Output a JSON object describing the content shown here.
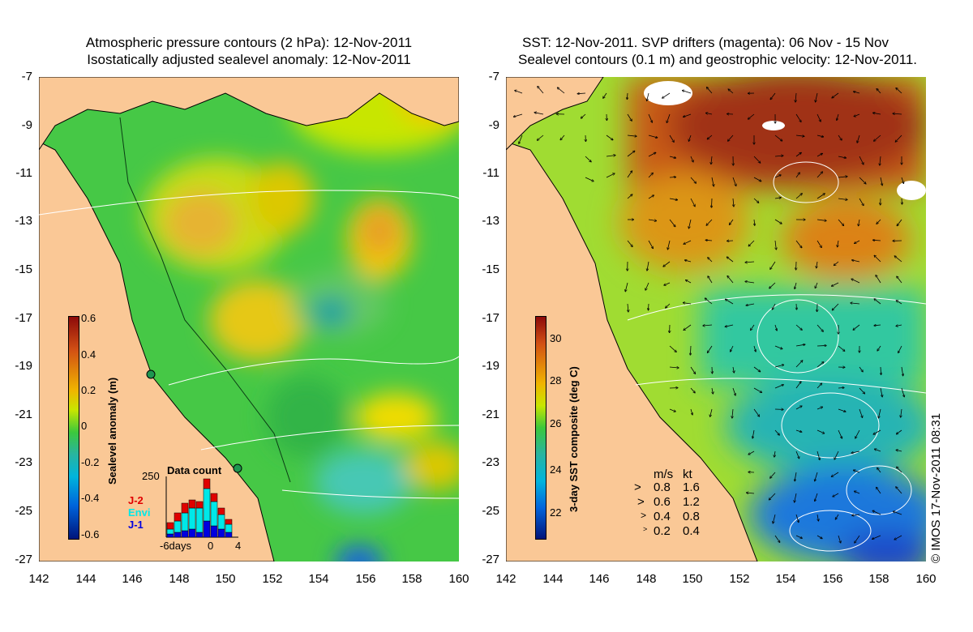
{
  "left_title": {
    "line1": "Atmospheric pressure contours (2 hPa): 12-Nov-2011",
    "line2": "Isostatically adjusted sealevel anomaly: 12-Nov-2011"
  },
  "right_title": {
    "line1": "SST: 12-Nov-2011. SVP drifters (magenta): 06 Nov - 15 Nov",
    "line2": "Sealevel contours (0.1 m) and geostrophic velocity: 12-Nov-2011."
  },
  "latitude_ticks": [
    "-7",
    "-9",
    "-11",
    "-13",
    "-15",
    "-17",
    "-19",
    "-21",
    "-23",
    "-25",
    "-27"
  ],
  "longitude_ticks": [
    "142",
    "144",
    "146",
    "148",
    "150",
    "152",
    "154",
    "156",
    "158",
    "160"
  ],
  "left_colorbar": {
    "label": "Sealevel anomaly (m)",
    "ticks": [
      "0.6",
      "0.4",
      "0.2",
      "0",
      "-0.2",
      "-0.4",
      "-0.6"
    ]
  },
  "right_colorbar": {
    "label": "3-day SST composite (deg C)",
    "ticks": [
      "30",
      "28",
      "26",
      "24",
      "22"
    ]
  },
  "data_count_inset": {
    "title": "Data count",
    "y_max": "250",
    "satellites": [
      {
        "name": "J-2",
        "color": "#e00000"
      },
      {
        "name": "Envi",
        "color": "#00e8e8"
      },
      {
        "name": "J-1",
        "color": "#0000e0"
      }
    ],
    "x_labels": [
      "-6days",
      "0",
      "4"
    ]
  },
  "velocity_legend": {
    "header_ms": "m/s",
    "header_kt": "kt",
    "rows": [
      {
        "ms": "0.8",
        "kt": "1.6"
      },
      {
        "ms": "0.6",
        "kt": "1.2"
      },
      {
        "ms": "0.4",
        "kt": "0.8"
      },
      {
        "ms": "0.2",
        "kt": "0.4"
      }
    ]
  },
  "copyright": "© IMOS 17-Nov-2011 08:31",
  "colors": {
    "land": "#fac896",
    "green": "#3cc83c",
    "orange_hot": "#d25014",
    "cyan": "#00c8c8",
    "blue": "#0032c8"
  }
}
